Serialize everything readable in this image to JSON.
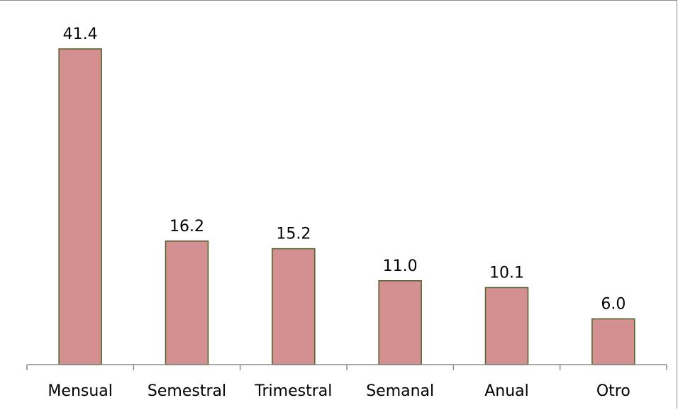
{
  "chart_data": {
    "type": "bar",
    "categories": [
      "Mensual",
      "Semestral",
      "Trimestral",
      "Semanal",
      "Anual",
      "Otro"
    ],
    "values": [
      41.4,
      16.2,
      15.2,
      11.0,
      10.1,
      6.0
    ],
    "value_labels": [
      "41.4",
      "16.2",
      "15.2",
      "11.0",
      "10.1",
      "6.0"
    ],
    "title": "",
    "xlabel": "",
    "ylabel": "",
    "ylim": [
      0,
      45
    ],
    "grid": false,
    "legend": "none",
    "colors": {
      "bar_fill": "#d49090",
      "bar_stroke": "#4f6228",
      "axis": "#8c8c8c"
    }
  }
}
